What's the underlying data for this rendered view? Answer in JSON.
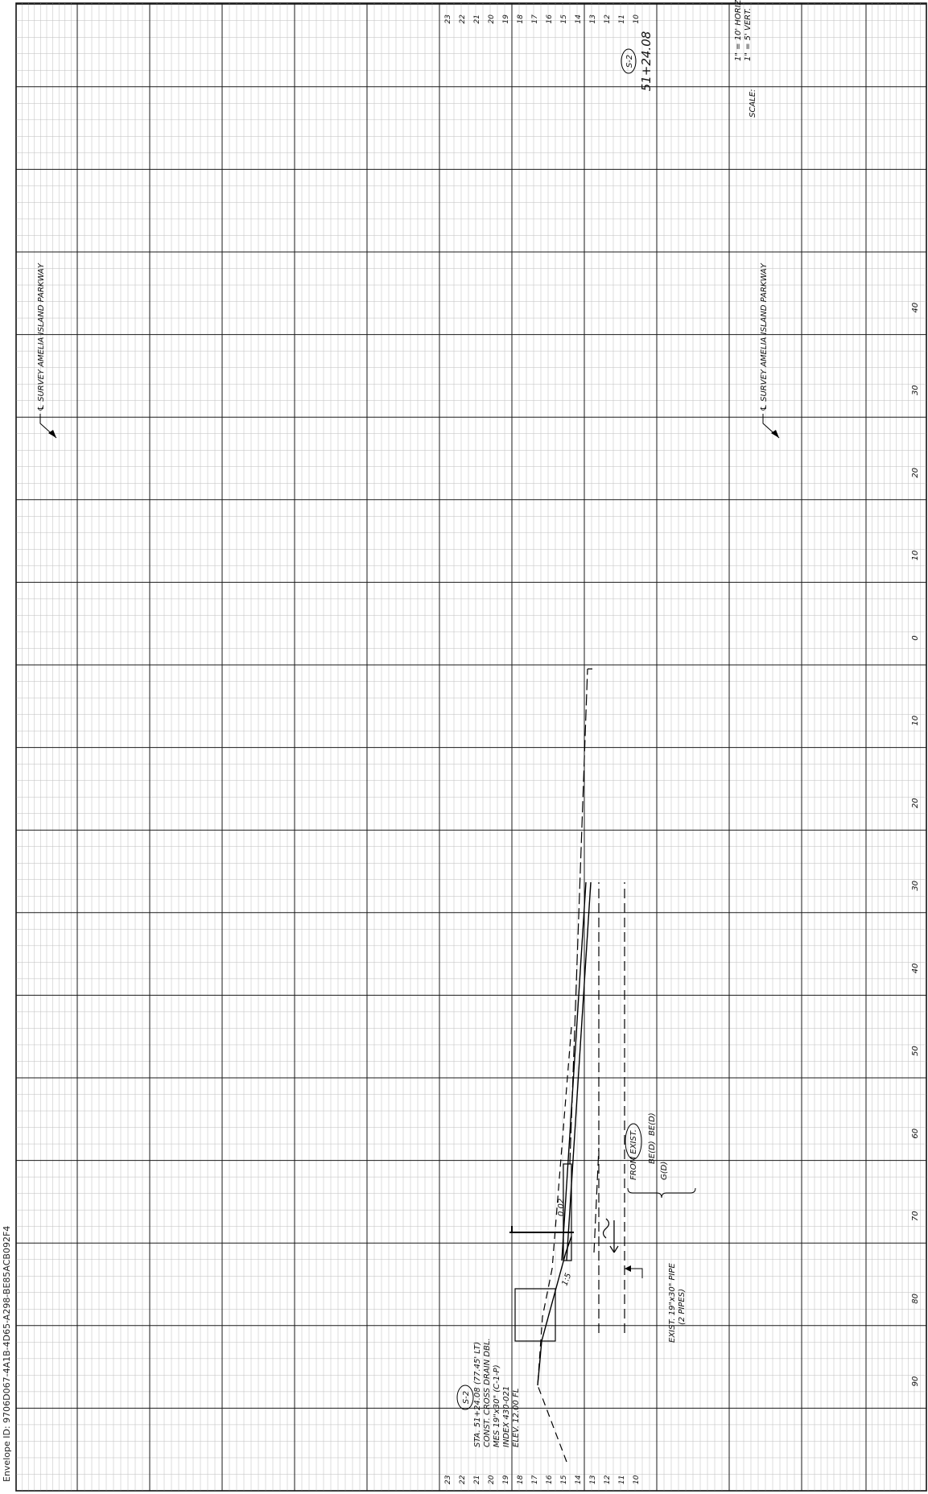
{
  "envelope_id": "Envelope ID: 9706D067-4A1B-4D65-A298-BE85ACB092F4",
  "section": {
    "station_header": "51+24.08",
    "callout_top": "S-2",
    "callout_bottom": "S-2",
    "survey_label": "℄ SURVEY AMELIA ISLAND PARKWAY",
    "scale_label": "SCALE:",
    "scale_horiz": "1\" = 10' HORIZ",
    "scale_vert": "1\" = 5' VERT.",
    "structure_note": [
      "STA. 51+24.08 (77.45' LT)",
      "CONST. CROSS DRAIN DBL.",
      "MES 19\"x30\" (C-1-P)",
      "INDEX 430-021",
      "ELEV. 12.00 FL"
    ],
    "pipe_note": [
      "EXIST. 19\"x30\" PIPE",
      "(2 PIPES)"
    ],
    "slope_label": "0.02",
    "ratio_label": "1:5",
    "from_exist_label": "FROM EXIST.",
    "layer_labels": [
      "BE(D)",
      "BE(D)",
      "G(D)"
    ]
  },
  "axes": {
    "elevations": [
      "23",
      "22",
      "21",
      "20",
      "19",
      "18",
      "17",
      "16",
      "15",
      "14",
      "13",
      "12",
      "11",
      "10"
    ],
    "offsets": [
      "90",
      "80",
      "70",
      "60",
      "50",
      "40",
      "30",
      "20",
      "10",
      "0",
      "10",
      "20",
      "30",
      "40"
    ]
  }
}
